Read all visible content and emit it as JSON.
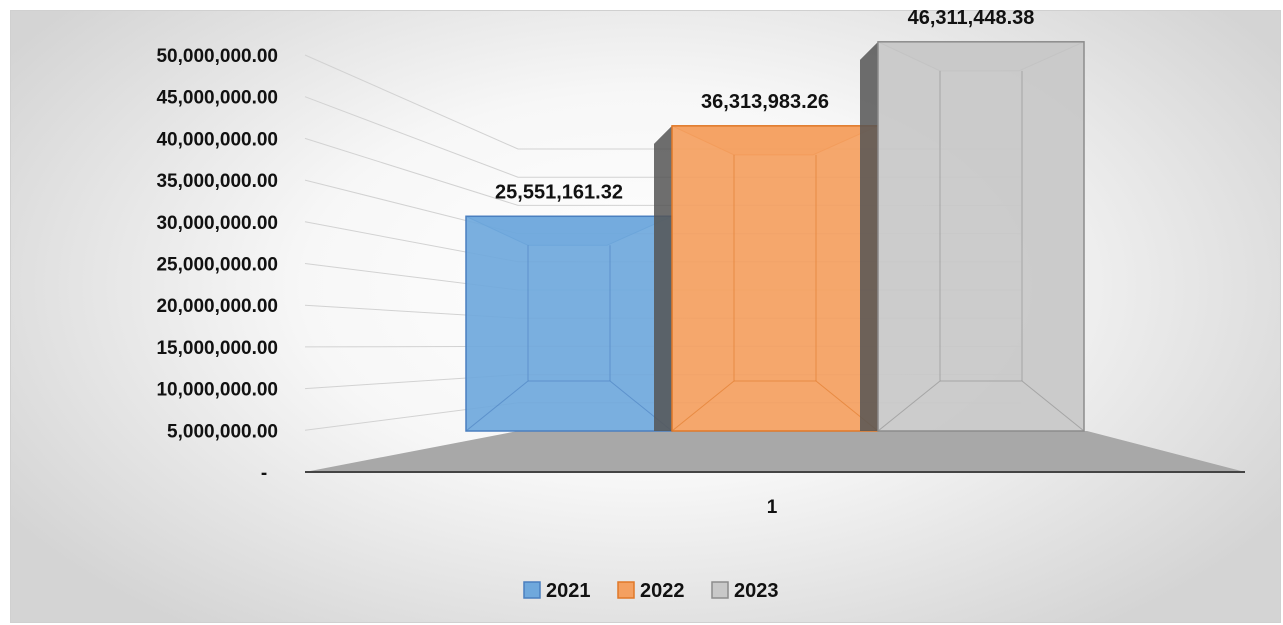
{
  "chart_data": {
    "type": "bar",
    "title": "",
    "xlabel": "",
    "ylabel": "",
    "categories": [
      "1"
    ],
    "series": [
      {
        "name": "2021",
        "values": [
          25551161.32
        ],
        "value_label": "25,551,161.32",
        "color": "#6fa8dc",
        "edge": "#4a7fbf"
      },
      {
        "name": "2022",
        "values": [
          36313983.26
        ],
        "value_label": "36,313,983.26",
        "color": "#f4a060",
        "edge": "#e07828"
      },
      {
        "name": "2023",
        "values": [
          46311448.38
        ],
        "value_label": "46,311,448.38",
        "color": "#c8c8c8",
        "edge": "#8c8c8c"
      }
    ],
    "ylim": [
      0,
      50000000
    ],
    "y_ticks": [
      "-",
      "5,000,000.00",
      "10,000,000.00",
      "15,000,000.00",
      "20,000,000.00",
      "25,000,000.00",
      "30,000,000.00",
      "35,000,000.00",
      "40,000,000.00",
      "45,000,000.00",
      "50,000,000.00"
    ],
    "legend_position": "bottom",
    "grid": true,
    "style": "3d-column"
  }
}
